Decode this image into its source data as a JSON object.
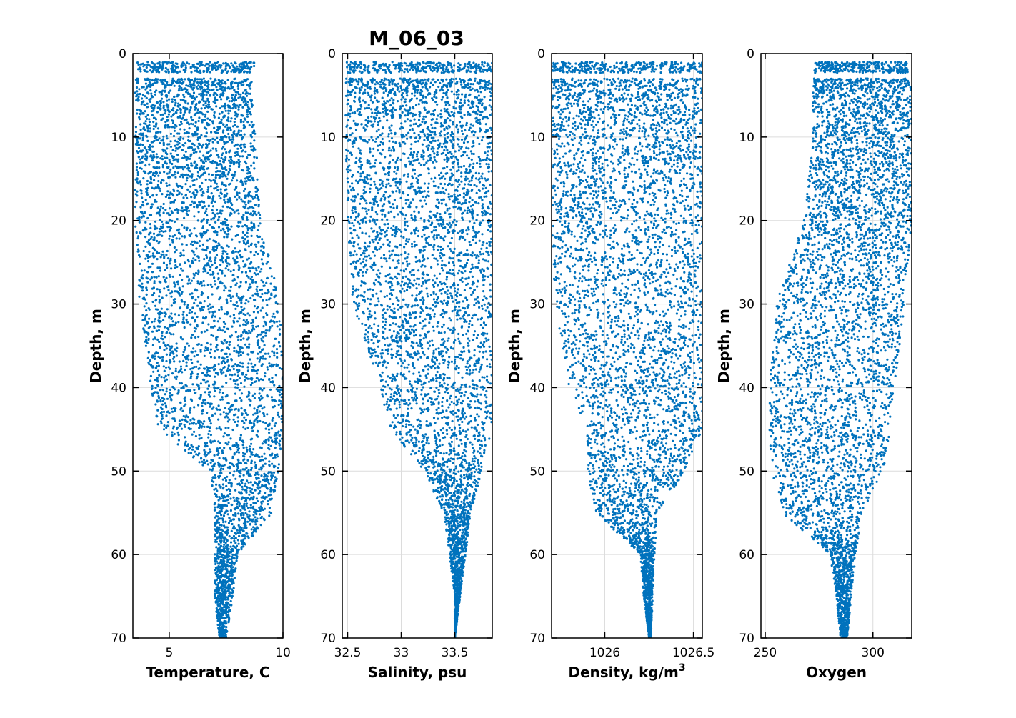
{
  "figure": {
    "title": "M_06_03",
    "marker_color": "#0072BD",
    "grid_color": "#dcdcdc"
  },
  "chart_data": [
    {
      "type": "scatter",
      "xlabel": "Temperature, C",
      "ylabel": "Depth, m",
      "xlim": [
        3.4,
        10
      ],
      "ylim": [
        0,
        70
      ],
      "y_reversed": true,
      "xticks": [
        5,
        10
      ],
      "xtick_labels": [
        "5",
        "10"
      ],
      "yticks": [
        0,
        10,
        20,
        30,
        40,
        50,
        60,
        70
      ],
      "ytick_labels": [
        "0",
        "10",
        "20",
        "30",
        "40",
        "50",
        "60",
        "70"
      ],
      "grid": true,
      "profile_depth": [
        1.5,
        4,
        10,
        20,
        30,
        40,
        45,
        50,
        55,
        60,
        65,
        70
      ],
      "profile_min": [
        3.6,
        3.5,
        3.5,
        3.5,
        3.7,
        4.2,
        4.5,
        6.8,
        7.0,
        7.0,
        7.0,
        7.2
      ],
      "profile_max": [
        8.8,
        8.6,
        8.8,
        9.0,
        9.9,
        10.0,
        10.0,
        9.8,
        9.5,
        8.0,
        7.8,
        7.5
      ]
    },
    {
      "type": "scatter",
      "xlabel": "Salinity, psu",
      "ylabel": "Depth, m",
      "xlim": [
        32.45,
        33.85
      ],
      "ylim": [
        0,
        70
      ],
      "y_reversed": true,
      "xticks": [
        32.5,
        33,
        33.5
      ],
      "xtick_labels": [
        "32.5",
        "33",
        "33.5"
      ],
      "yticks": [
        0,
        10,
        20,
        30,
        40,
        50,
        60,
        70
      ],
      "ytick_labels": [
        "0",
        "10",
        "20",
        "30",
        "40",
        "50",
        "60",
        "70"
      ],
      "grid": true,
      "profile_depth": [
        1.5,
        4,
        10,
        20,
        30,
        40,
        45,
        50,
        55,
        60,
        65,
        70
      ],
      "profile_min": [
        32.48,
        32.48,
        32.48,
        32.5,
        32.55,
        32.8,
        32.9,
        33.2,
        33.4,
        33.45,
        33.5,
        33.5
      ],
      "profile_max": [
        33.85,
        33.85,
        33.85,
        33.85,
        33.85,
        33.85,
        33.85,
        33.75,
        33.65,
        33.6,
        33.55,
        33.5
      ]
    },
    {
      "type": "scatter",
      "xlabel": "Density, kg/m",
      "xlabel_superscript": "3",
      "ylabel": "Depth, m",
      "xlim": [
        1025.7,
        1026.55
      ],
      "ylim": [
        0,
        70
      ],
      "y_reversed": true,
      "xticks": [
        1026,
        1026.5
      ],
      "xtick_labels": [
        "1026",
        "1026.5"
      ],
      "yticks": [
        0,
        10,
        20,
        30,
        40,
        50,
        60,
        70
      ],
      "ytick_labels": [
        "0",
        "10",
        "20",
        "30",
        "40",
        "50",
        "60",
        "70"
      ],
      "grid": true,
      "profile_depth": [
        1.5,
        4,
        10,
        20,
        30,
        40,
        45,
        50,
        55,
        60,
        65,
        70
      ],
      "profile_min": [
        1025.7,
        1025.7,
        1025.7,
        1025.7,
        1025.72,
        1025.8,
        1025.9,
        1025.9,
        1025.95,
        1026.2,
        1026.22,
        1026.25
      ],
      "profile_max": [
        1026.55,
        1026.55,
        1026.55,
        1026.55,
        1026.55,
        1026.55,
        1026.55,
        1026.45,
        1026.3,
        1026.28,
        1026.27,
        1026.26
      ]
    },
    {
      "type": "scatter",
      "xlabel": "Oxygen",
      "ylabel": "Depth, m",
      "xlim": [
        248,
        318
      ],
      "ylim": [
        0,
        70
      ],
      "y_reversed": true,
      "xticks": [
        250,
        300
      ],
      "xtick_labels": [
        "250",
        "300"
      ],
      "yticks": [
        0,
        10,
        20,
        30,
        40,
        50,
        60,
        70
      ],
      "ytick_labels": [
        "0",
        "10",
        "20",
        "30",
        "40",
        "50",
        "60",
        "70"
      ],
      "grid": true,
      "profile_depth": [
        1.5,
        4,
        10,
        20,
        30,
        40,
        45,
        50,
        55,
        60,
        65,
        70
      ],
      "profile_min": [
        273,
        272,
        272,
        268,
        255,
        252,
        252,
        253,
        258,
        280,
        283,
        285
      ],
      "profile_max": [
        316,
        318,
        318,
        318,
        315,
        310,
        308,
        305,
        295,
        292,
        290,
        288
      ]
    }
  ]
}
